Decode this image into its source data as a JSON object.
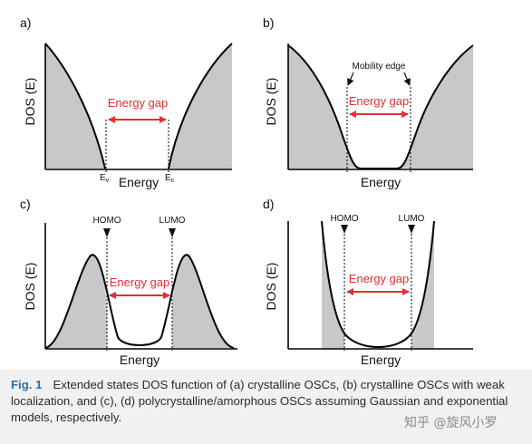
{
  "panels": {
    "a": {
      "letter": "a)",
      "ylabel": "DOS (E)",
      "xlabel": "Energy",
      "gap_label": "Energy gap",
      "ev": "E",
      "ev_sub": "v",
      "ec": "E",
      "ec_sub": "c"
    },
    "b": {
      "letter": "b)",
      "ylabel": "DOS (E)",
      "xlabel": "Energy",
      "gap_label": "Energy gap",
      "mobility_edge": "Mobility edge"
    },
    "c": {
      "letter": "c)",
      "ylabel": "DOS (E)",
      "xlabel": "Energy",
      "gap_label": "Energy gap",
      "homo": "HOMO",
      "lumo": "LUMO"
    },
    "d": {
      "letter": "d)",
      "ylabel": "DOS (E)",
      "xlabel": "Energy",
      "gap_label": "Energy gap",
      "homo": "HOMO",
      "lumo": "LUMO"
    }
  },
  "caption": {
    "label": "Fig. 1",
    "text": "Extended states DOS function of (a) crystalline OSCs, (b) crystalline OSCs with weak localization, and (c), (d) polycrystalline/amorphous OSCs assuming Gaussian and exponential models, respectively."
  },
  "watermark": "知乎 @旋风小罗",
  "colors": {
    "fill": "#c8c8c8",
    "curve": "#000000",
    "gap_arrow": "#e03030"
  }
}
